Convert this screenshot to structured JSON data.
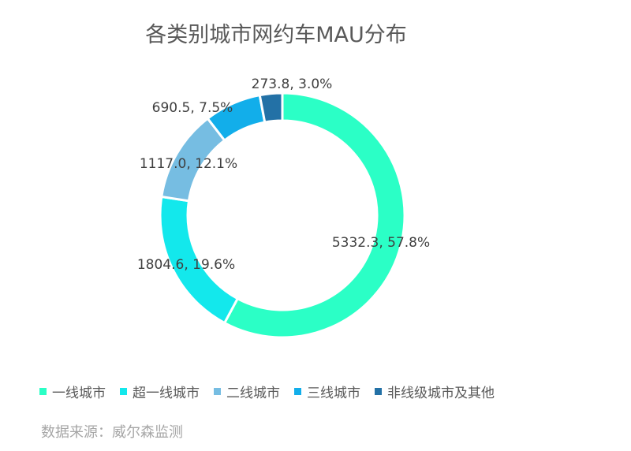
{
  "chart_data": {
    "type": "pie",
    "title": "各类别城市网约车MAU分布",
    "subtype": "donut",
    "series": [
      {
        "name": "一线城市",
        "value": 5332.3,
        "percent": "57.8%",
        "label": "5332.3, 57.8%",
        "color": "#2bffc6"
      },
      {
        "name": "超一线城市",
        "value": 1804.6,
        "percent": "19.6%",
        "label": "1804.6, 19.6%",
        "color": "#13e8ec"
      },
      {
        "name": "二线城市",
        "value": 1117.0,
        "percent": "12.1%",
        "label": "1117.0, 12.1%",
        "color": "#76bde2"
      },
      {
        "name": "三线城市",
        "value": 690.5,
        "percent": "7.5%",
        "label": "690.5, 7.5%",
        "color": "#12aeea"
      },
      {
        "name": "非线级城市及其他",
        "value": 273.8,
        "percent": "3.0%",
        "label": "273.8, 3.0%",
        "color": "#2371a6"
      }
    ],
    "legend_position": "bottom",
    "source": "数据来源：威尔森监测"
  }
}
